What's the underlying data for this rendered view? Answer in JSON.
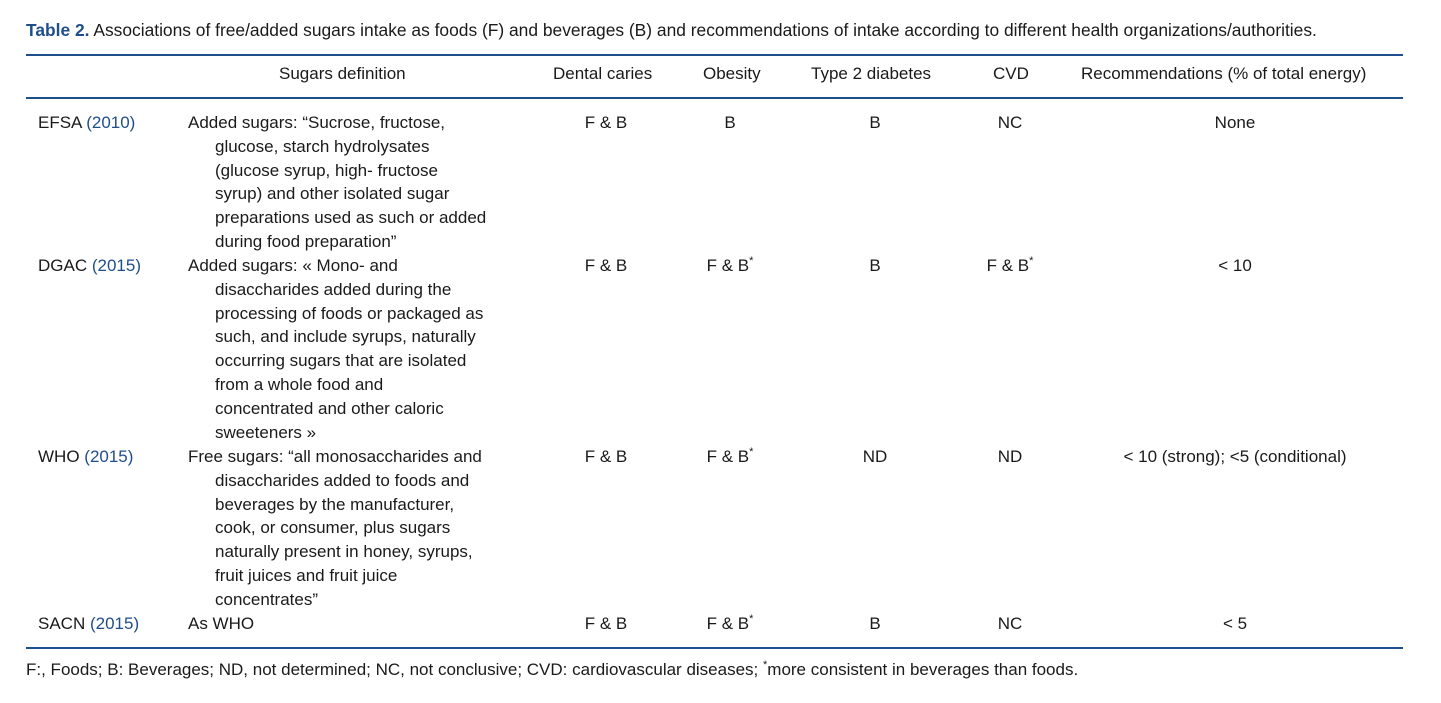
{
  "caption": {
    "label": "Table 2.",
    "text": "Associations of free/added sugars intake as foods (F) and beverages (B) and recommendations of intake according to different health organizations/authorities."
  },
  "headers": {
    "organization": "",
    "definition": "Sugars definition",
    "dental": "Dental caries",
    "obesity": "Obesity",
    "diabetes": "Type 2 diabetes",
    "cvd": "CVD",
    "recommendations": "Recommendations (% of total energy)"
  },
  "rows": [
    {
      "org": "EFSA",
      "year": "(2010)",
      "definition_lines": [
        "Added sugars: “Sucrose, fructose,",
        "glucose, starch hydrolysates",
        "(glucose syrup, high- fructose",
        "syrup) and other isolated sugar",
        "preparations used as such or added",
        "during food preparation”"
      ],
      "dental": "F & B",
      "obesity": "B",
      "obesity_sup": "",
      "diabetes": "B",
      "cvd": "NC",
      "cvd_sup": "",
      "recommendation": "None"
    },
    {
      "org": "DGAC",
      "year": "(2015)",
      "definition_lines": [
        "Added sugars: « Mono- and",
        "disaccharides added during the",
        "processing of foods or packaged as",
        "such, and include syrups, naturally",
        "occurring sugars that are isolated",
        "from a whole food and",
        "concentrated and other caloric",
        "sweeteners »"
      ],
      "dental": "F & B",
      "obesity": "F & B",
      "obesity_sup": "*",
      "diabetes": "B",
      "cvd": "F & B",
      "cvd_sup": "*",
      "recommendation": "< 10"
    },
    {
      "org": "WHO",
      "year": "(2015)",
      "definition_lines": [
        "Free sugars: “all monosaccharides and",
        "disaccharides added to foods and",
        "beverages by the manufacturer,",
        "cook, or consumer, plus sugars",
        "naturally present in honey, syrups,",
        "fruit juices and fruit juice",
        "concentrates”"
      ],
      "dental": "F & B",
      "obesity": "F & B",
      "obesity_sup": "*",
      "diabetes": "ND",
      "cvd": "ND",
      "cvd_sup": "",
      "recommendation": "< 10 (strong); <5 (conditional)"
    },
    {
      "org": "SACN",
      "year": "(2015)",
      "definition_lines": [
        "As WHO"
      ],
      "dental": "F & B",
      "obesity": "F & B",
      "obesity_sup": "*",
      "diabetes": "B",
      "cvd": "NC",
      "cvd_sup": "",
      "recommendation": "< 5"
    }
  ],
  "footnote": {
    "text": "F:, Foods; B: Beverages; ND, not determined; NC, not conclusive; CVD: cardiovascular diseases;",
    "sup": "*",
    "tail": "more consistent in beverages than foods."
  }
}
